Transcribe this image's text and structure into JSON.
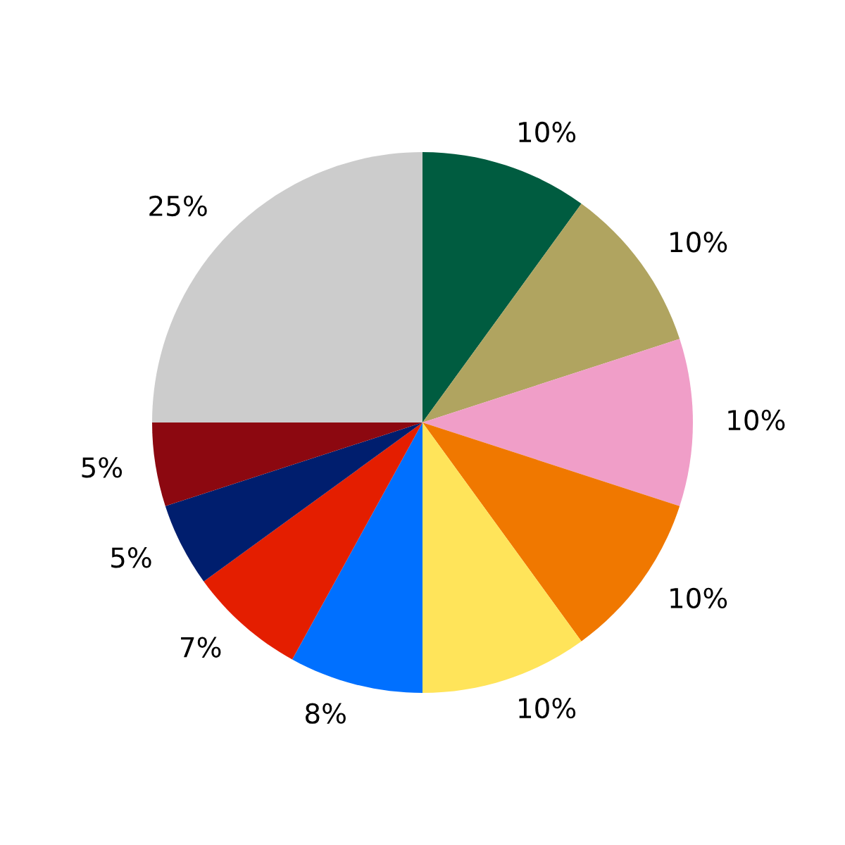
{
  "chart_data": {
    "type": "pie",
    "categories": [
      null,
      null,
      null,
      null,
      null,
      null,
      null,
      null,
      null,
      null
    ],
    "values": [
      10,
      10,
      10,
      10,
      10,
      8,
      7,
      5,
      5,
      25
    ],
    "value_labels": [
      "10%",
      "10%",
      "10%",
      "10%",
      "10%",
      "8%",
      "7%",
      "5%",
      "5%",
      "25%"
    ],
    "colors": [
      "#005c40",
      "#b0a460",
      "#f09ec8",
      "#f07800",
      "#ffe45a",
      "#0070ff",
      "#e41e00",
      "#001e6e",
      "#8c0810",
      "#cccccc"
    ]
  }
}
